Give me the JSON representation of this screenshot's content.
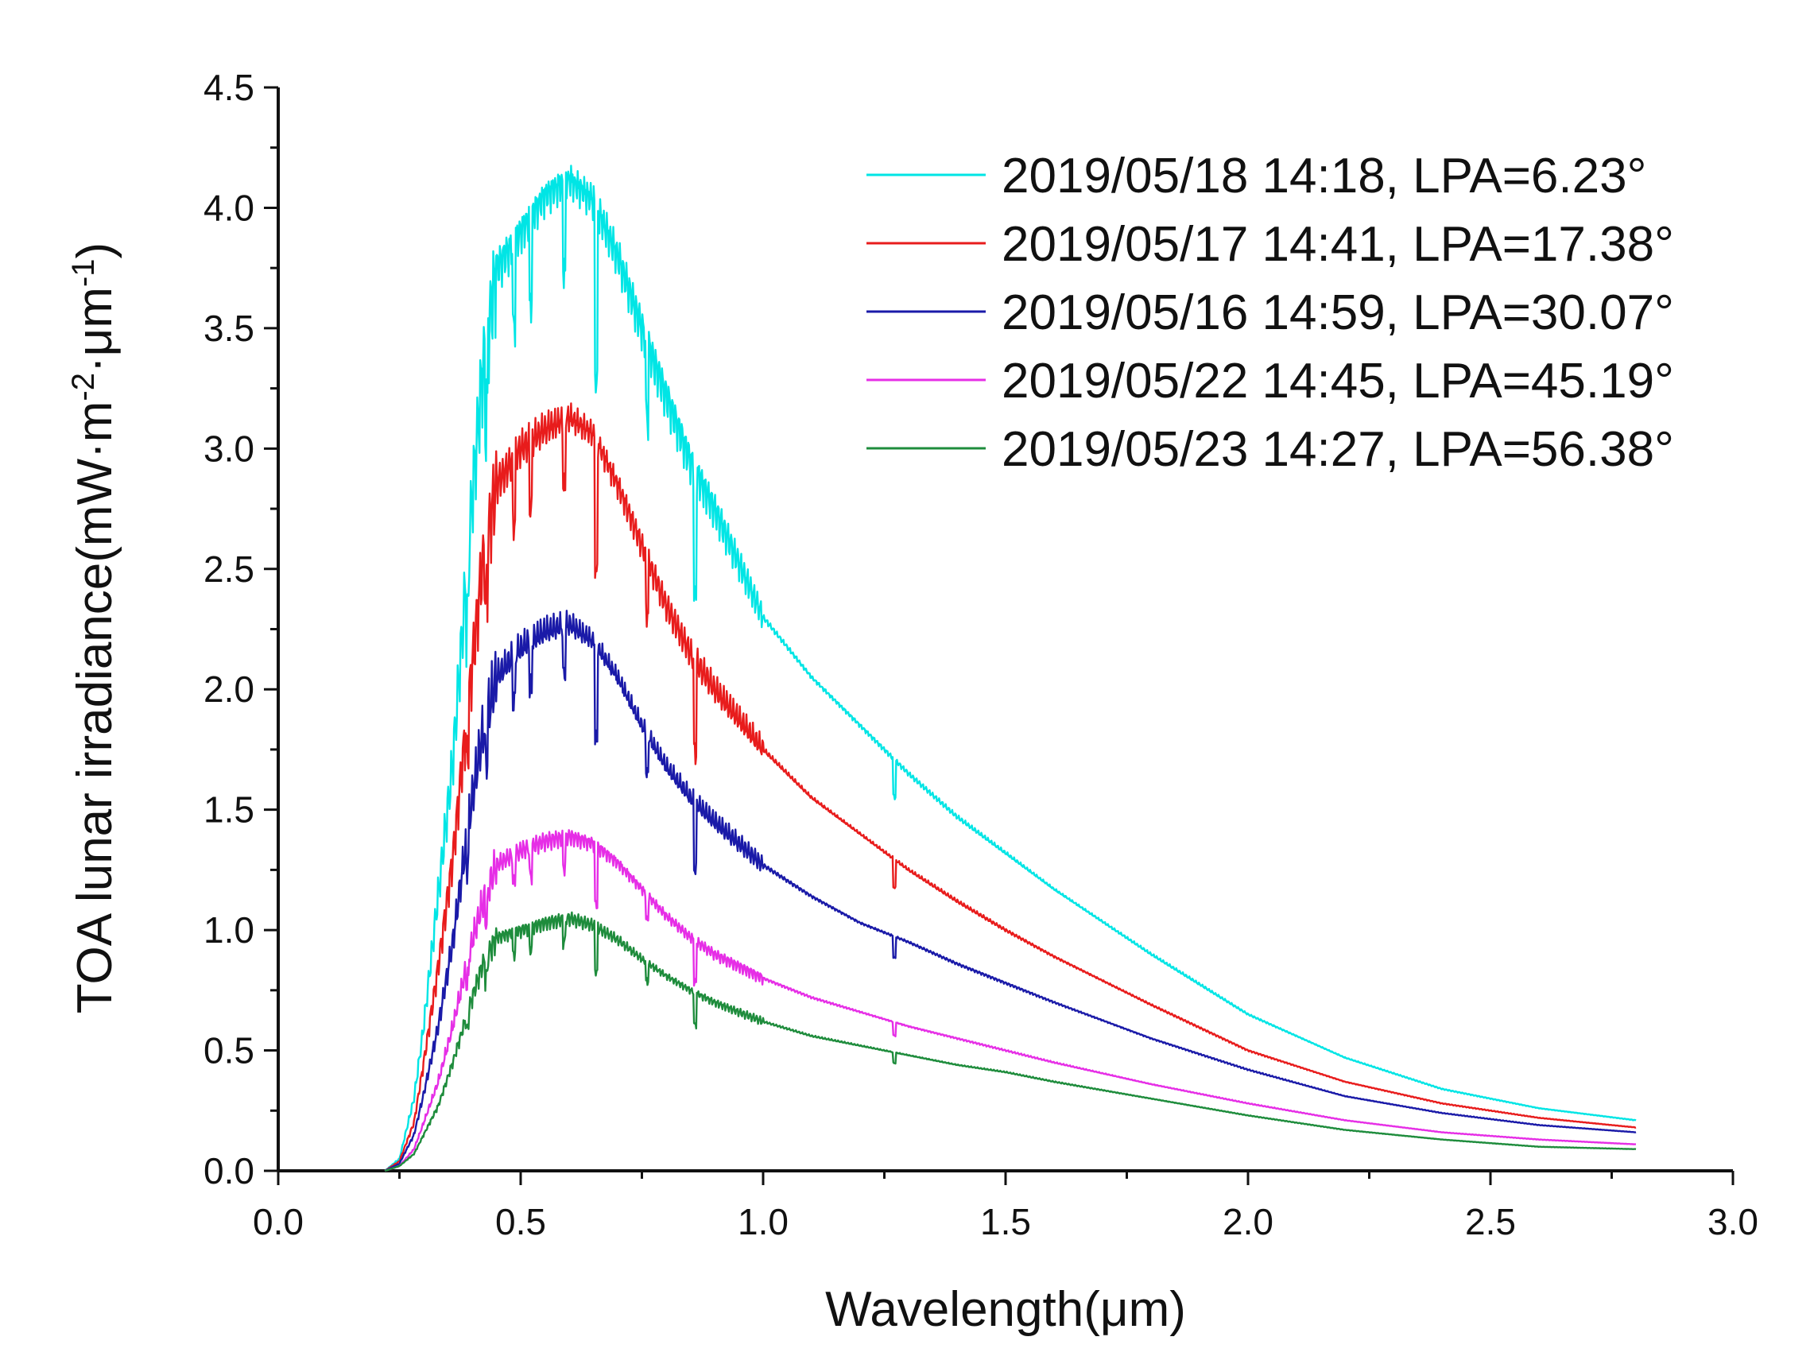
{
  "chart_data": {
    "type": "line",
    "title": "",
    "xlabel": "Wavelength(μm)",
    "ylabel": "TOA lunar irradiance(mW·m-2·μm-1)",
    "ylabel_parts": {
      "pre": "TOA lunar irradiance(mW·m",
      "sup1": "-2",
      "mid": "·μm",
      "sup2": "-1",
      "post": ")"
    },
    "xlim": [
      0.0,
      3.0
    ],
    "ylim": [
      0.0,
      4.5
    ],
    "xticks": [
      "0.0",
      "0.5",
      "1.0",
      "1.5",
      "2.0",
      "2.5",
      "3.0"
    ],
    "yticks": [
      "0.0",
      "0.5",
      "1.0",
      "1.5",
      "2.0",
      "2.5",
      "3.0",
      "3.5",
      "4.0",
      "4.5"
    ],
    "grid": false,
    "legend_position": "top-right",
    "x": [
      0.22,
      0.25,
      0.28,
      0.3,
      0.33,
      0.36,
      0.4,
      0.42,
      0.45,
      0.5,
      0.55,
      0.6,
      0.65,
      0.7,
      0.75,
      0.8,
      0.85,
      0.9,
      1.0,
      1.1,
      1.2,
      1.3,
      1.4,
      1.5,
      1.6,
      1.8,
      2.0,
      2.2,
      2.4,
      2.6,
      2.8
    ],
    "series": [
      {
        "name": "2019/05/18 14:18, LPA=6.23°",
        "color": "#00e5e5",
        "values": [
          0.0,
          0.05,
          0.3,
          0.6,
          1.15,
          1.7,
          2.8,
          3.3,
          3.75,
          3.9,
          4.05,
          4.12,
          4.03,
          3.8,
          3.5,
          3.22,
          2.95,
          2.75,
          2.3,
          2.05,
          1.85,
          1.65,
          1.47,
          1.32,
          1.17,
          0.9,
          0.65,
          0.47,
          0.34,
          0.26,
          0.21
        ]
      },
      {
        "name": "2019/05/17 14:41, LPA=17.38°",
        "color": "#e81c1c",
        "values": [
          0.0,
          0.04,
          0.2,
          0.45,
          0.85,
          1.3,
          2.1,
          2.5,
          2.85,
          3.0,
          3.08,
          3.13,
          3.06,
          2.85,
          2.6,
          2.35,
          2.15,
          2.0,
          1.75,
          1.55,
          1.4,
          1.25,
          1.12,
          1.0,
          0.89,
          0.69,
          0.5,
          0.37,
          0.28,
          0.22,
          0.18
        ]
      },
      {
        "name": "2019/05/16 14:59, LPA=30.07°",
        "color": "#1a1aa8",
        "values": [
          0.0,
          0.03,
          0.15,
          0.32,
          0.6,
          0.95,
          1.55,
          1.8,
          2.05,
          2.17,
          2.24,
          2.27,
          2.2,
          2.05,
          1.85,
          1.68,
          1.55,
          1.45,
          1.27,
          1.14,
          1.03,
          0.95,
          0.86,
          0.78,
          0.7,
          0.55,
          0.42,
          0.31,
          0.24,
          0.19,
          0.16
        ]
      },
      {
        "name": "2019/05/22 14:45, LPA=45.19°",
        "color": "#e62ee6",
        "values": [
          0.0,
          0.02,
          0.09,
          0.2,
          0.37,
          0.6,
          0.95,
          1.1,
          1.27,
          1.33,
          1.37,
          1.39,
          1.36,
          1.28,
          1.17,
          1.06,
          0.97,
          0.9,
          0.8,
          0.72,
          0.66,
          0.6,
          0.55,
          0.5,
          0.45,
          0.36,
          0.28,
          0.21,
          0.16,
          0.13,
          0.11
        ]
      },
      {
        "name": "2019/05/23 14:27, LPA=56.38°",
        "color": "#1e8c3c",
        "values": [
          0.0,
          0.02,
          0.07,
          0.15,
          0.27,
          0.45,
          0.72,
          0.85,
          0.97,
          1.0,
          1.03,
          1.05,
          1.02,
          0.96,
          0.88,
          0.81,
          0.75,
          0.7,
          0.62,
          0.56,
          0.52,
          0.48,
          0.44,
          0.41,
          0.37,
          0.3,
          0.23,
          0.17,
          0.13,
          0.1,
          0.09
        ]
      }
    ]
  }
}
